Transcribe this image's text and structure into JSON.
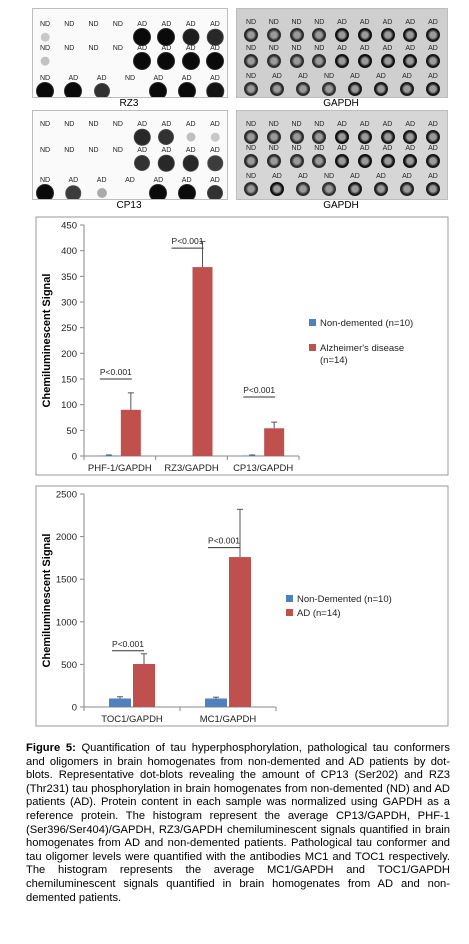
{
  "blots": {
    "rz3": {
      "label": "RZ3",
      "rows": [
        {
          "labels": [
            "ND",
            "ND",
            "ND",
            "ND",
            "AD",
            "AD",
            "AD",
            "AD"
          ],
          "dots": [
            0.05,
            0.0,
            0.0,
            0.0,
            1.0,
            1.0,
            0.9,
            0.85
          ]
        },
        {
          "labels": [
            "ND",
            "ND",
            "ND",
            "ND",
            "AD",
            "AD",
            "AD",
            "AD"
          ],
          "dots": [
            0.08,
            0.0,
            0.0,
            0.0,
            1.0,
            1.0,
            1.0,
            1.0
          ]
        },
        {
          "labels": [
            "ND",
            "AD",
            "AD",
            "ND",
            "AD",
            "AD",
            "AD"
          ],
          "dots": [
            1.0,
            1.0,
            0.8,
            0.0,
            1.0,
            1.0,
            0.95
          ]
        }
      ]
    },
    "gapdh1": {
      "label": "GAPDH",
      "rows": [
        {
          "labels": [
            "ND",
            "ND",
            "ND",
            "ND",
            "AD",
            "AD",
            "AD",
            "AD",
            "AD"
          ],
          "dots": [
            0.6,
            0.5,
            0.55,
            0.5,
            0.9,
            0.95,
            0.85,
            0.85,
            0.8
          ]
        },
        {
          "labels": [
            "ND",
            "ND",
            "ND",
            "ND",
            "AD",
            "AD",
            "AD",
            "AD",
            "AD"
          ],
          "dots": [
            0.55,
            0.5,
            0.5,
            0.5,
            0.9,
            0.95,
            0.9,
            0.9,
            0.85
          ]
        },
        {
          "labels": [
            "ND",
            "AD",
            "AD",
            "ND",
            "AD",
            "AD",
            "AD",
            "AD"
          ],
          "dots": [
            0.5,
            0.55,
            0.5,
            0.45,
            0.8,
            0.8,
            0.75,
            0.85
          ]
        }
      ]
    },
    "cp13": {
      "label": "CP13",
      "rows": [
        {
          "labels": [
            "ND",
            "ND",
            "ND",
            "ND",
            "AD",
            "AD",
            "AD",
            "AD"
          ],
          "dots": [
            0.0,
            0.0,
            0.0,
            0.0,
            0.85,
            0.8,
            0.1,
            0.05
          ]
        },
        {
          "labels": [
            "ND",
            "ND",
            "ND",
            "ND",
            "AD",
            "AD",
            "AD",
            "AD"
          ],
          "dots": [
            0.0,
            0.0,
            0.0,
            0.0,
            0.8,
            0.85,
            0.85,
            0.75
          ]
        },
        {
          "labels": [
            "ND",
            "AD",
            "AD",
            "AD",
            "AD",
            "AD",
            "AD"
          ],
          "dots": [
            1.0,
            0.75,
            0.2,
            0.0,
            1.0,
            1.0,
            0.8
          ]
        }
      ]
    },
    "gapdh2": {
      "label": "GAPDH",
      "rows": [
        {
          "labels": [
            "ND",
            "ND",
            "ND",
            "ND",
            "AD",
            "AD",
            "AD",
            "AD",
            "AD"
          ],
          "dots": [
            0.55,
            0.5,
            0.5,
            0.5,
            0.95,
            0.85,
            0.8,
            0.85,
            0.8
          ]
        },
        {
          "labels": [
            "ND",
            "ND",
            "ND",
            "ND",
            "AD",
            "AD",
            "AD",
            "AD",
            "AD"
          ],
          "dots": [
            0.55,
            0.55,
            0.5,
            0.5,
            0.9,
            0.95,
            0.9,
            0.9,
            0.85
          ]
        },
        {
          "labels": [
            "ND",
            "AD",
            "AD",
            "ND",
            "AD",
            "AD",
            "AD",
            "AD"
          ],
          "dots": [
            0.5,
            0.95,
            0.5,
            0.45,
            0.8,
            0.7,
            0.65,
            0.75
          ]
        }
      ]
    }
  },
  "chart_data": [
    {
      "type": "bar",
      "categories": [
        "PHF-1/GAPDH",
        "RZ3/GAPDH",
        "CP13/GAPDH"
      ],
      "series": [
        {
          "name": "Non-demented (n=10)",
          "values": [
            1,
            0,
            1
          ],
          "errors": [
            1,
            0,
            1
          ],
          "color": "#4f81bd"
        },
        {
          "name": "Alzheimer's disease (n=14)",
          "values": [
            90,
            368,
            54
          ],
          "errors": [
            33,
            50,
            12
          ],
          "color": "#c0504d"
        }
      ],
      "annotations": [
        "P<0.001",
        "P<0.001",
        "P<0.001"
      ],
      "ylabel": "Chemiluminescent Signal",
      "ylim": [
        0,
        450
      ],
      "yticks": [
        0,
        50,
        100,
        150,
        200,
        250,
        300,
        350,
        400,
        450
      ],
      "legend_position": "right"
    },
    {
      "type": "bar",
      "categories": [
        "TOC1/GAPDH",
        "MC1/GAPDH"
      ],
      "series": [
        {
          "name": "Non-Demented (n=10)",
          "values": [
            100,
            100
          ],
          "errors": [
            20,
            15
          ],
          "color": "#4f81bd"
        },
        {
          "name": "AD (n=14)",
          "values": [
            505,
            1760
          ],
          "errors": [
            120,
            560
          ],
          "color": "#c0504d"
        }
      ],
      "annotations": [
        "P<0.001",
        "P<0.001"
      ],
      "ylabel": "Chemiluminescent Signal",
      "ylim": [
        0,
        2500
      ],
      "yticks": [
        0,
        500,
        1000,
        1500,
        2000,
        2500
      ],
      "legend_position": "right"
    }
  ],
  "caption": {
    "label": "Figure 5:",
    "text": " Quantification of tau hyperphosphorylation, pathological tau conformers and oligomers in brain homogenates from non-demented and AD patients by dot-blots. Representative dot-blots revealing the amount of CP13 (Ser202) and RZ3 (Thr231) tau phosphorylation in brain homogenates from non-demented (ND) and AD patients (AD). Protein content in each sample was normalized using GAPDH as a reference protein. The histogram represent the average CP13/GAPDH, PHF-1 (Ser396/Ser404)/GAPDH, RZ3/GAPDH chemiluminescent signals quantified in brain homogenates from AD and non-demented patients. Pathological tau conformer and tau oligomer levels were quantified with the antibodies MC1 and TOC1 respectively. The histogram represents the average MC1/GAPDH and TOC1/GAPDH chemiluminescent signals quantified in brain homogenates from AD and non-demented patients."
  }
}
